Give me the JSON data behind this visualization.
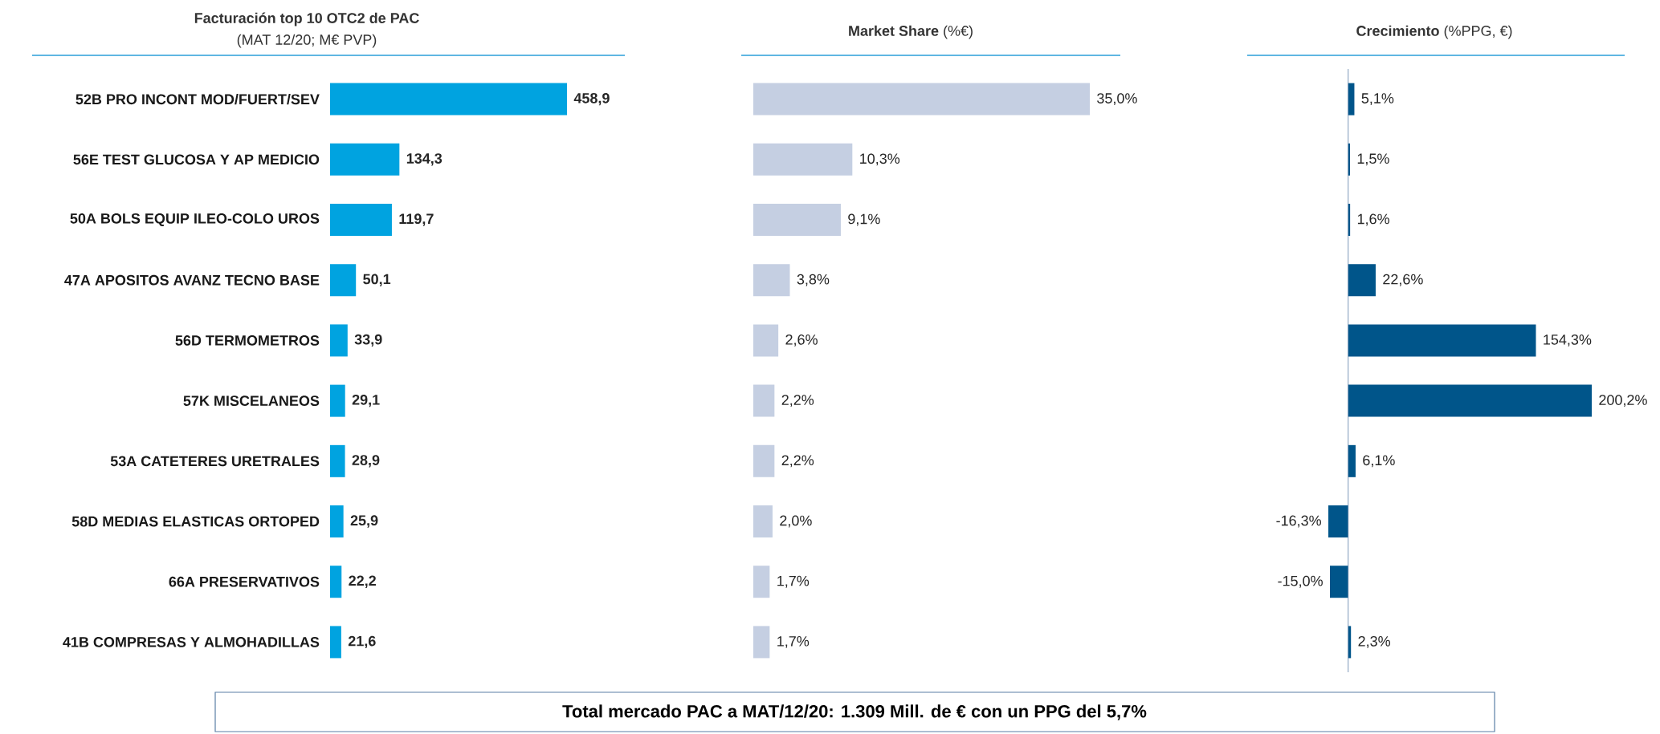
{
  "chart_data": [
    {
      "type": "bar",
      "orientation": "horizontal",
      "title": "Facturación top 10 OTC2 de PAC",
      "subtitle": "(MAT 12/20; M€ PVP)",
      "tick_labels": "y",
      "categories": [
        "52B PRO INCONT MOD/FUERT/SEV",
        "56E TEST GLUCOSA Y AP MEDICIO",
        "50A BOLS EQUIP ILEO-COLO UROS",
        "47A APOSITOS AVANZ TECNO BASE",
        "56D TERMOMETROS",
        "57K MISCELANEOS",
        "53A CATETERES URETRALES",
        "58D MEDIAS ELASTICAS ORTOPED",
        "66A PRESERVATIVOS",
        "41B COMPRESAS Y ALMOHADILLAS"
      ],
      "values": [
        458.9,
        134.3,
        119.7,
        50.1,
        33.9,
        29.1,
        28.9,
        25.9,
        22.2,
        21.6
      ],
      "value_labels": [
        "458,9",
        "134,3",
        "119,7",
        "50,1",
        "33,9",
        "29,1",
        "28,9",
        "25,9",
        "22,2",
        "21,6"
      ],
      "color": "#00a3e0",
      "annotations": [
        "Total mercado PAC a MAT/12/20: 1.309 Mill. de € con un PPG del 5,7%"
      ]
    },
    {
      "type": "bar",
      "orientation": "horizontal",
      "title": "**Market Share** (%€)",
      "tick_labels": false,
      "values": [
        35.0,
        10.3,
        9.1,
        3.8,
        2.6,
        2.2,
        2.2,
        2.0,
        1.7,
        1.7
      ],
      "value_labels": [
        "35,0%",
        "10,3%",
        "9,1%",
        "3,8%",
        "2,6%",
        "2,2%",
        "2,2%",
        "2,0%",
        "1,7%",
        "1,7%"
      ],
      "color": "#c5cfe2"
    },
    {
      "type": "bar",
      "orientation": "horizontal",
      "title": "**Crecimiento** (%PPG, €)",
      "tick_labels": false,
      "ref_lines": [
        {
          "axis": "x",
          "value": 0,
          "color": "#5b7fa6"
        }
      ],
      "values": [
        5.1,
        1.5,
        1.6,
        22.6,
        154.3,
        200.2,
        6.1,
        -16.3,
        -15.0,
        2.3
      ],
      "value_labels": [
        "5,1%",
        "1,5%",
        "1,6%",
        "22,6%",
        "154,3%",
        "200,2%",
        "6,1%",
        "-16,3%",
        "-15,0%",
        "2,3%"
      ],
      "color": "#00558a"
    }
  ]
}
